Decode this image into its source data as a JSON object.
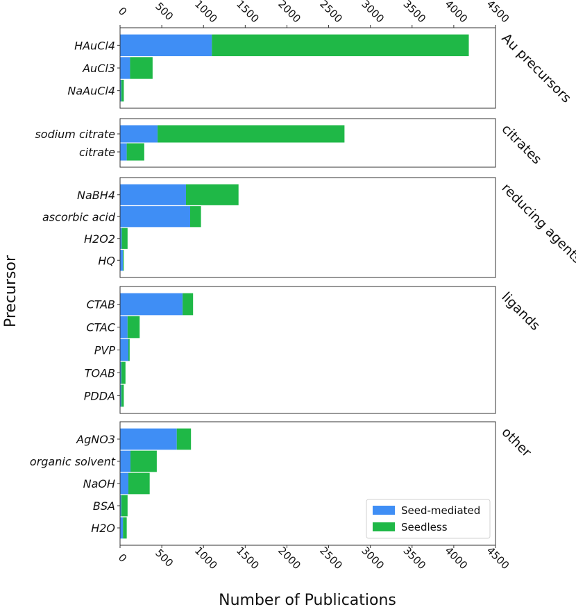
{
  "chart_data": {
    "type": "bar",
    "orientation": "horizontal",
    "stacked": true,
    "xlabel": "Number of Publications",
    "ylabel": "Precursor",
    "xlim": [
      0,
      4500
    ],
    "xticks": [
      "0",
      "500",
      "1000",
      "1500",
      "2000",
      "2500",
      "3000",
      "3500",
      "4000",
      "4500"
    ],
    "series_names": [
      "Seed-mediated",
      "Seedless"
    ],
    "colors": {
      "seed_mediated": "#3f8ef5",
      "seedless": "#1fb847"
    },
    "legend_position": "lower-right",
    "groups": [
      {
        "name": "Au precursors",
        "items": [
          {
            "label": "HAuCl4",
            "seed_mediated": 1100,
            "seedless": 3080
          },
          {
            "label": "AuCl3",
            "seed_mediated": 120,
            "seedless": 270
          },
          {
            "label": "NaAuCl4",
            "seed_mediated": 15,
            "seedless": 30
          }
        ]
      },
      {
        "name": "citrates",
        "items": [
          {
            "label": "sodium citrate",
            "seed_mediated": 450,
            "seedless": 2240
          },
          {
            "label": "citrate",
            "seed_mediated": 80,
            "seedless": 210
          }
        ]
      },
      {
        "name": "reducing agents",
        "items": [
          {
            "label": "NaBH4",
            "seed_mediated": 790,
            "seedless": 630
          },
          {
            "label": "ascorbic acid",
            "seed_mediated": 840,
            "seedless": 130
          },
          {
            "label": "H2O2",
            "seed_mediated": 20,
            "seedless": 70
          },
          {
            "label": "HQ",
            "seed_mediated": 35,
            "seedless": 10
          }
        ]
      },
      {
        "name": "ligands",
        "items": [
          {
            "label": "CTAB",
            "seed_mediated": 750,
            "seedless": 125
          },
          {
            "label": "CTAC",
            "seed_mediated": 90,
            "seedless": 145
          },
          {
            "label": "PVP",
            "seed_mediated": 100,
            "seedless": 15
          },
          {
            "label": "TOAB",
            "seed_mediated": 15,
            "seedless": 50
          },
          {
            "label": "PDDA",
            "seed_mediated": 15,
            "seedless": 30
          }
        ]
      },
      {
        "name": "other",
        "items": [
          {
            "label": "AgNO3",
            "seed_mediated": 680,
            "seedless": 170
          },
          {
            "label": "organic solvent",
            "seed_mediated": 125,
            "seedless": 315
          },
          {
            "label": "NaOH",
            "seed_mediated": 100,
            "seedless": 255
          },
          {
            "label": "BSA",
            "seed_mediated": 15,
            "seedless": 75
          },
          {
            "label": "H2O",
            "seed_mediated": 35,
            "seedless": 45
          }
        ]
      }
    ]
  }
}
